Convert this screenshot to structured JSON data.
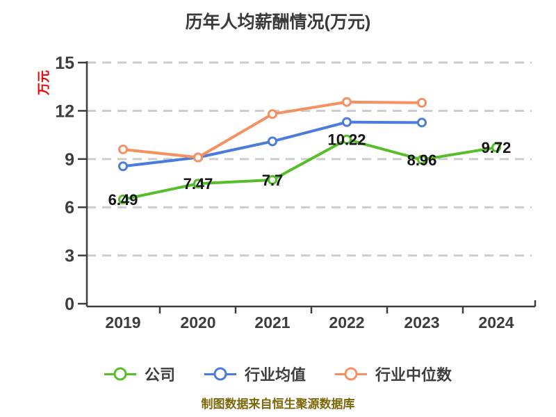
{
  "chart_data": {
    "type": "line",
    "title": "历年人均薪酬情况(万元)",
    "ylabel": "万元",
    "x_labels": [
      "2019",
      "2020",
      "2021",
      "2022",
      "2023",
      "2024"
    ],
    "y_ticks": [
      0,
      3,
      6,
      9,
      12,
      15
    ],
    "ylim": [
      0,
      15
    ],
    "grid": "horizontal-dashed",
    "legend_position": "bottom",
    "series": [
      {
        "name": "公司",
        "color": "#56be28",
        "values": [
          6.49,
          7.47,
          7.7,
          10.22,
          8.96,
          9.72
        ],
        "show_labels": true
      },
      {
        "name": "行业均值",
        "color": "#4a7cde",
        "values": [
          8.55,
          9.1,
          10.1,
          11.3,
          11.27,
          null
        ],
        "show_labels": false
      },
      {
        "name": "行业中位数",
        "color": "#f79060",
        "values": [
          9.6,
          9.1,
          11.8,
          12.55,
          12.5,
          null
        ],
        "show_labels": false
      }
    ],
    "source_note": "制图数据来自恒生聚源数据库",
    "colors": {
      "title": "#3a3a3a",
      "axis": "#3d3d3d",
      "tick_label": "#3d3d3d",
      "grid": "#cccccc",
      "point_label": "#141414",
      "ylabel": "#ec0000",
      "source_note": "#7d6608",
      "marker_fill": "#ffffff"
    }
  }
}
